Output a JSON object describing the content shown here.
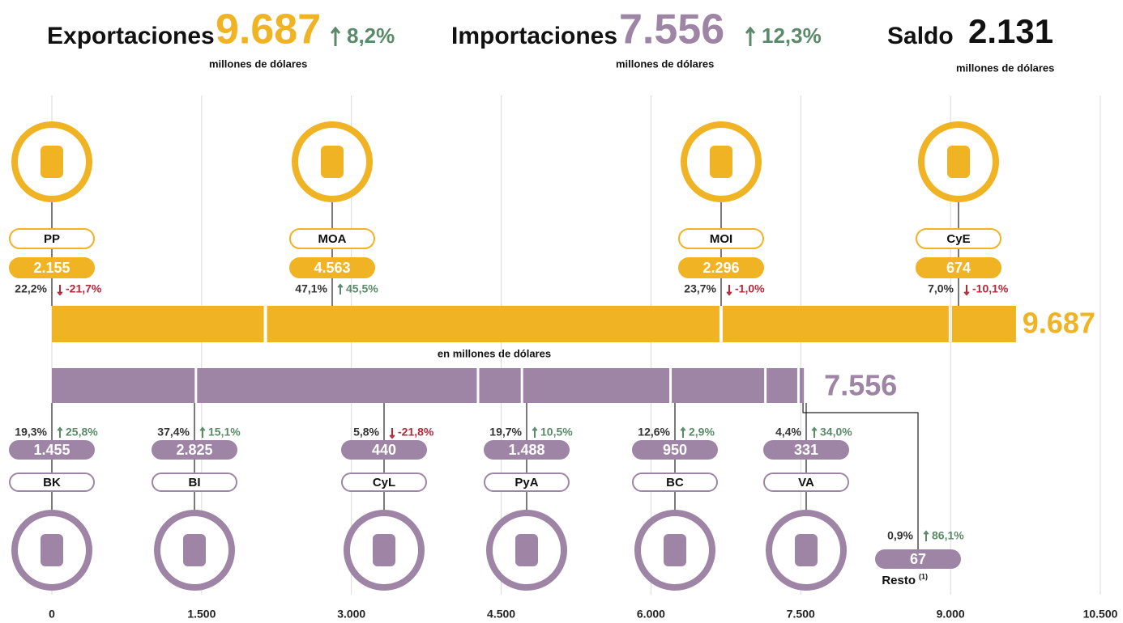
{
  "header": {
    "exports": {
      "label": "Exportaciones",
      "value": 9687,
      "value_label": "9.687",
      "change": 8.2,
      "change_label": "8,2%",
      "unit": "millones de dólares"
    },
    "imports": {
      "label": "Importaciones",
      "value": 7556,
      "value_label": "7.556",
      "change": 12.3,
      "change_label": "12,3%",
      "unit": "millones de dólares"
    },
    "balance": {
      "label": "Saldo",
      "value": 2131,
      "value_label": "2.131",
      "unit": "millones de dólares"
    }
  },
  "chart_data": {
    "type": "stacked_bar",
    "axis_label": "en millones de dólares",
    "xlim": [
      0,
      10500
    ],
    "xticks": [
      0,
      {
        "value": 1500,
        "label": "1.500"
      },
      {
        "value": 3000,
        "label": "3.000"
      },
      {
        "value": 4500,
        "label": "4.500"
      },
      {
        "value": 6000,
        "label": "6.000"
      },
      {
        "value": 7500,
        "label": "7.500"
      },
      {
        "value": 9000,
        "label": "9.000"
      },
      {
        "value": 10500,
        "label": "10.500"
      }
    ],
    "grid": true,
    "series": [
      {
        "color": "#f0b323",
        "total": 9687,
        "total_label": "9.687",
        "segments": [
          {
            "name": "PP",
            "value": 2155,
            "value_label": "2.155",
            "share": 22.2,
            "share_label": "22,2%",
            "change": -21.7,
            "change_label": "-21,7%"
          },
          {
            "name": "MOA",
            "value": 4563,
            "value_label": "4.563",
            "share": 47.1,
            "share_label": "47,1%",
            "change": 45.5,
            "change_label": "45,5%"
          },
          {
            "name": "MOI",
            "value": 2296,
            "value_label": "2.296",
            "share": 23.7,
            "share_label": "23,7%",
            "change": -1.0,
            "change_label": "-1,0%"
          },
          {
            "name": "CyE",
            "value": 674,
            "value_label": "674",
            "share": 7.0,
            "share_label": "7,0%",
            "change": -10.1,
            "change_label": "-10,1%"
          }
        ]
      },
      {
        "color": "#9e85a6",
        "total": 7556,
        "total_label": "7.556",
        "segments": [
          {
            "name": "BK",
            "value": 1455,
            "value_label": "1.455",
            "share": 19.3,
            "share_label": "19,3%",
            "change": 25.8,
            "change_label": "25,8%"
          },
          {
            "name": "BI",
            "value": 2825,
            "value_label": "2.825",
            "share": 37.4,
            "share_label": "37,4%",
            "change": 15.1,
            "change_label": "15,1%"
          },
          {
            "name": "CyL",
            "value": 440,
            "value_label": "440",
            "share": 5.8,
            "share_label": "5,8%",
            "change": -21.8,
            "change_label": "-21,8%"
          },
          {
            "name": "PyA",
            "value": 1488,
            "value_label": "1.488",
            "share": 19.7,
            "share_label": "19,7%",
            "change": 10.5,
            "change_label": "10,5%"
          },
          {
            "name": "BC",
            "value": 950,
            "value_label": "950",
            "share": 12.6,
            "share_label": "12,6%",
            "change": 2.9,
            "change_label": "2,9%"
          },
          {
            "name": "VA",
            "value": 331,
            "value_label": "331",
            "share": 4.4,
            "share_label": "4,4%",
            "change": 34.0,
            "change_label": "34,0%"
          },
          {
            "name": "Resto",
            "note": "(1)",
            "value": 67,
            "value_label": "67",
            "share": 0.9,
            "share_label": "0,9%",
            "change": 86.1,
            "change_label": "86,1%"
          }
        ]
      }
    ]
  }
}
